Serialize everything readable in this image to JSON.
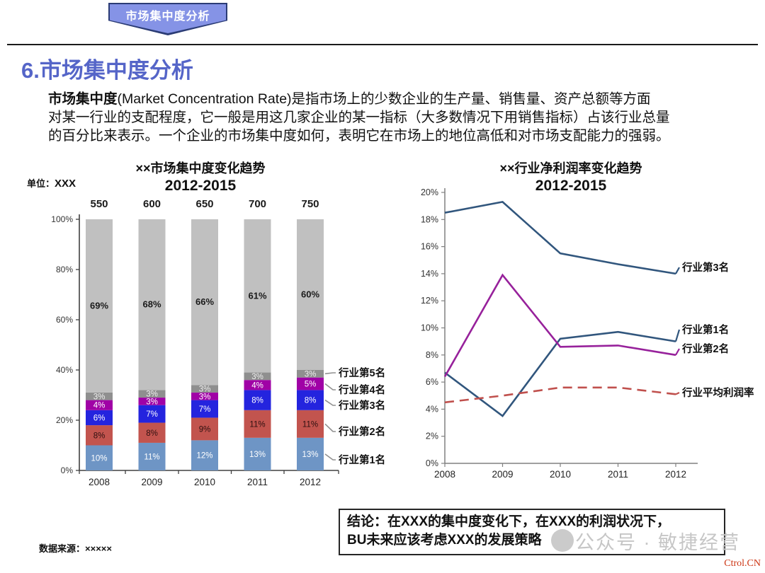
{
  "banner": {
    "label": "市场集中度分析"
  },
  "heading": {
    "title": "6.市场集中度分析"
  },
  "intro": {
    "bold_lead": "市场集中度",
    "line1_rest": "(Market Concentration Rate)是指市场上的少数企业的生产量、销售量、资产总额等方面",
    "line2": "对某一行业的支配程度，它一般是用这几家企业的某一指标（大多数情况下用销售指标）占该行业总量",
    "line3": "的百分比来表示。一个企业的市场集中度如何，表明它在市场上的地位高低和对市场支配能力的强弱。"
  },
  "conclusion": {
    "line1": "结论：在XXX的集中度变化下，在XXX的利润状况下，",
    "line2": "BU未来应该考虑XXX的发展策略"
  },
  "footer": {
    "data_source_label": "数据来源：",
    "data_source_value": "×××××",
    "watermark": "公众号 · 敏捷经营",
    "site": "Ctrol.CN"
  },
  "chart_data": [
    {
      "type": "bar",
      "stacked": true,
      "title": "××市场集中度变化趋势",
      "subtitle": "2012-2015",
      "unit_label": "单位：",
      "unit_value": "XXX",
      "categories": [
        "2008",
        "2009",
        "2010",
        "2011",
        "2012"
      ],
      "totals": [
        "550",
        "600",
        "650",
        "700",
        "750"
      ],
      "ylim": [
        0,
        100
      ],
      "yticks": [
        "100%",
        "80%",
        "60%",
        "40%",
        "20%",
        "0%"
      ],
      "series": [
        {
          "name": "行业第1名",
          "color": "#6E95C5",
          "label_color": "#FFFFFF",
          "values": [
            10,
            11,
            12,
            13,
            13
          ]
        },
        {
          "name": "行业第2名",
          "color": "#C2544E",
          "label_color": "#2E1010",
          "values": [
            8,
            8,
            9,
            11,
            11
          ]
        },
        {
          "name": "行业第3名",
          "color": "#2424DE",
          "label_color": "#FFFFFF",
          "values": [
            6,
            7,
            7,
            8,
            8
          ]
        },
        {
          "name": "行业第4名",
          "color": "#A002A6",
          "label_color": "#FFFFFF",
          "values": [
            4,
            3,
            3,
            4,
            5
          ]
        },
        {
          "name": "行业第5名",
          "color": "#8F8F8F",
          "label_color": "#EFEFEF",
          "values": [
            3,
            3,
            3,
            3,
            3
          ]
        },
        {
          "name": "",
          "color": "#C0C0C0",
          "label_color": "#1A1A1A",
          "values": [
            69,
            68,
            66,
            61,
            60
          ]
        }
      ],
      "legend": [
        "行业第5名",
        "行业第4名",
        "行业第3名",
        "行业第2名",
        "行业第1名"
      ]
    },
    {
      "type": "line",
      "title": "××行业净利润率变化趋势",
      "subtitle": "2012-2015",
      "x": [
        "2008",
        "2009",
        "2010",
        "2011",
        "2012"
      ],
      "ylim": [
        0,
        20
      ],
      "yticks": [
        "20%",
        "18%",
        "16%",
        "14%",
        "12%",
        "10%",
        "8%",
        "6%",
        "4%",
        "2%",
        "0%"
      ],
      "series": [
        {
          "name": "行业第3名",
          "color": "#31567D",
          "dash": false,
          "values": [
            18.5,
            19.3,
            15.5,
            14.7,
            14.0
          ]
        },
        {
          "name": "行业第1名",
          "color": "#31567D",
          "dash": false,
          "values": [
            6.7,
            3.5,
            9.2,
            9.7,
            9.0
          ]
        },
        {
          "name": "行业第2名",
          "color": "#97219B",
          "dash": false,
          "values": [
            6.4,
            13.9,
            8.6,
            8.7,
            8.0
          ]
        },
        {
          "name": "行业平均利润率",
          "color": "#C0504D",
          "dash": true,
          "values": [
            4.5,
            5.0,
            5.6,
            5.6,
            5.1
          ]
        }
      ],
      "legend_position": "right-of-lines"
    }
  ]
}
